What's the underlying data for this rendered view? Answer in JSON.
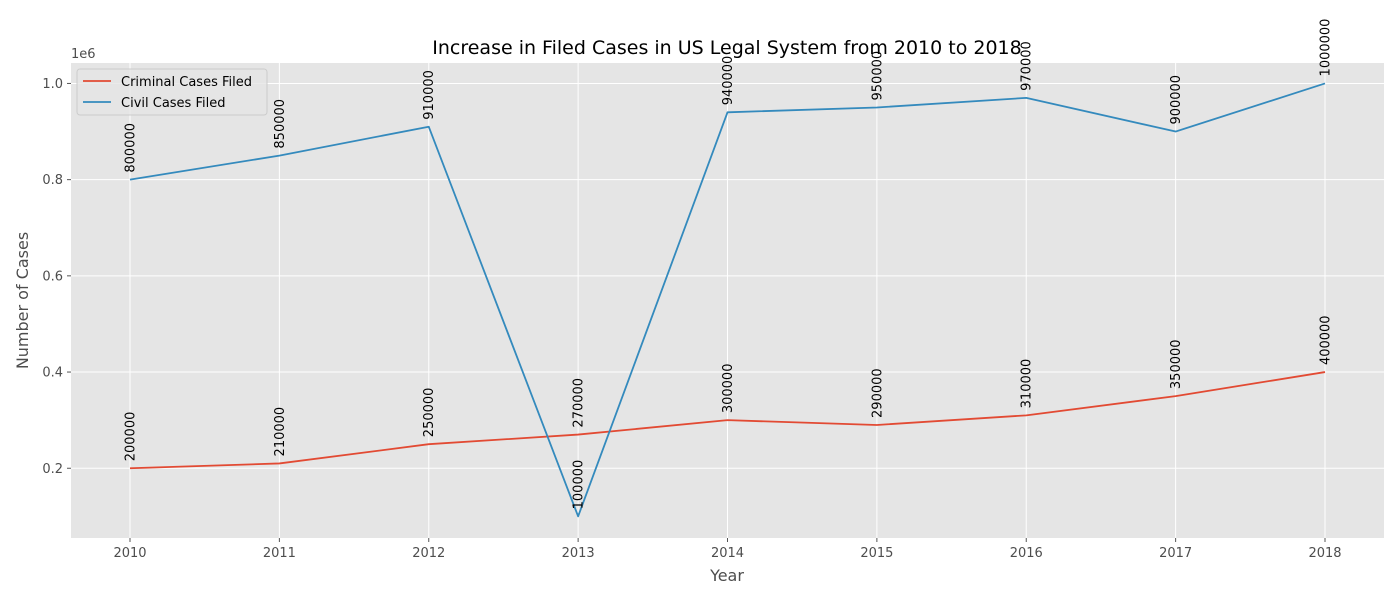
{
  "chart_data": {
    "type": "line",
    "title": "Increase in Filed Cases in US Legal System from 2010 to 2018",
    "xlabel": "Year",
    "ylabel": "Number of Cases",
    "y_offset_label": "1e6",
    "categories": [
      "2010",
      "2011",
      "2012",
      "2013",
      "2014",
      "2015",
      "2016",
      "2017",
      "2018"
    ],
    "ylim": [
      55000,
      1042500
    ],
    "yticks": [
      200000,
      400000,
      600000,
      800000,
      1000000
    ],
    "ytick_labels": [
      "0.2",
      "0.4",
      "0.6",
      "0.8",
      "1.0"
    ],
    "grid": true,
    "legend_position": "top-left",
    "series": [
      {
        "name": "Criminal Cases Filed",
        "color": "#E24A33",
        "values": [
          200000,
          210000,
          250000,
          270000,
          300000,
          290000,
          310000,
          350000,
          400000
        ],
        "labels": [
          "200000",
          "210000",
          "250000",
          "270000",
          "300000",
          "290000",
          "310000",
          "350000",
          "400000"
        ]
      },
      {
        "name": "Civil Cases Filed",
        "color": "#348ABD",
        "values": [
          800000,
          850000,
          910000,
          100000,
          940000,
          950000,
          970000,
          900000,
          1000000
        ],
        "labels": [
          "800000",
          "850000",
          "910000",
          "100000",
          "940000",
          "950000",
          "970000",
          "900000",
          "1000000"
        ]
      }
    ]
  }
}
